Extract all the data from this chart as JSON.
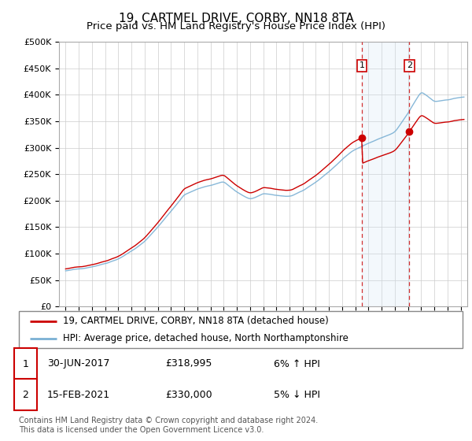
{
  "title": "19, CARTMEL DRIVE, CORBY, NN18 8TA",
  "subtitle": "Price paid vs. HM Land Registry's House Price Index (HPI)",
  "title_fontsize": 11,
  "subtitle_fontsize": 9.5,
  "hpi_color": "#7ab0d4",
  "hpi_fill_color": "#d0e5f5",
  "price_color": "#cc0000",
  "marker_color": "#cc0000",
  "dashed_color": "#cc0000",
  "background_color": "#ffffff",
  "grid_color": "#cccccc",
  "annotation_box_color": "#cc0000",
  "ylim": [
    0,
    500000
  ],
  "yticks": [
    0,
    50000,
    100000,
    150000,
    200000,
    250000,
    300000,
    350000,
    400000,
    450000,
    500000
  ],
  "ytick_labels": [
    "£0",
    "£50K",
    "£100K",
    "£150K",
    "£200K",
    "£250K",
    "£300K",
    "£350K",
    "£400K",
    "£450K",
    "£500K"
  ],
  "xlim_start": 1994.5,
  "xlim_end": 2025.5,
  "sale1_year": 2017.5,
  "sale1_price": 318995,
  "sale2_year": 2021.1,
  "sale2_price": 330000,
  "legend_line1": "19, CARTMEL DRIVE, CORBY, NN18 8TA (detached house)",
  "legend_line2": "HPI: Average price, detached house, North Northamptonshire",
  "footer": "Contains HM Land Registry data © Crown copyright and database right 2024.\nThis data is licensed under the Open Government Licence v3.0.",
  "table_row1": [
    "1",
    "30-JUN-2017",
    "£318,995",
    "6% ↑ HPI"
  ],
  "table_row2": [
    "2",
    "15-FEB-2021",
    "£330,000",
    "5% ↓ HPI"
  ]
}
